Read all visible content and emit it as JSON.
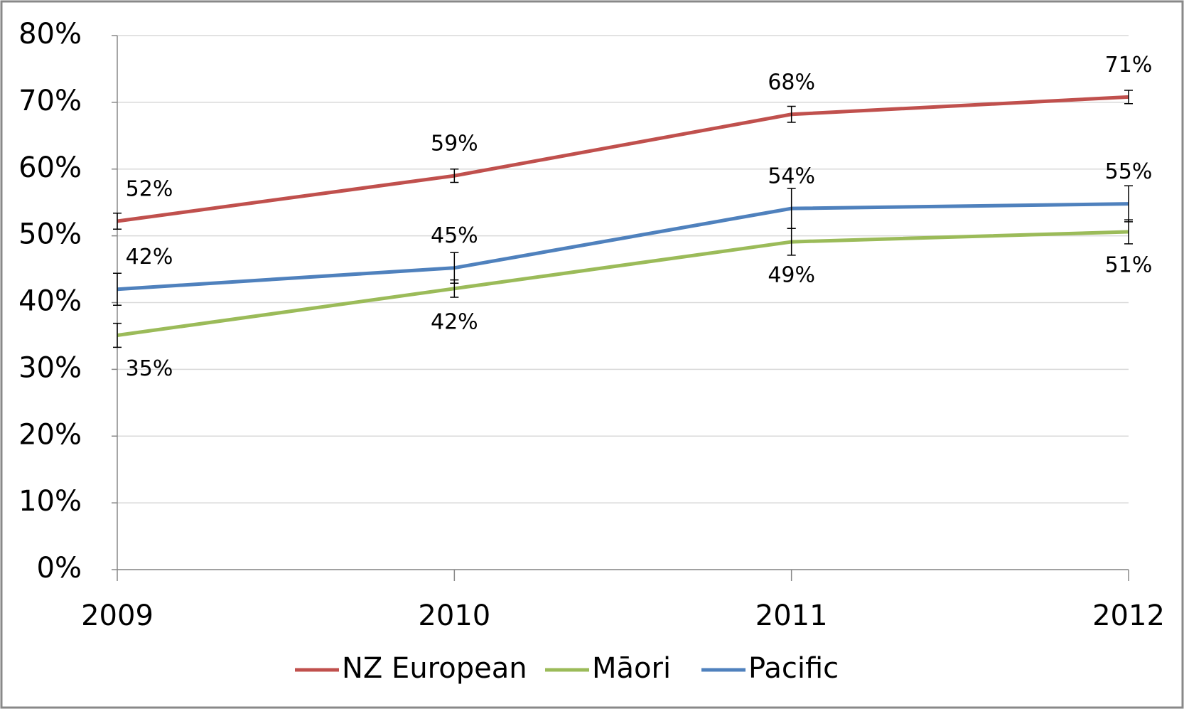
{
  "chart_data": {
    "type": "line",
    "categories": [
      "2009",
      "2010",
      "2011",
      "2012"
    ],
    "series": [
      {
        "name": "NZ European",
        "color": "#c0504d",
        "values": [
          52.2,
          59,
          68.2,
          70.8
        ],
        "errors": [
          1.2,
          1,
          1.2,
          1
        ],
        "value_labels": [
          "52%",
          "59%",
          "68%",
          "71%"
        ],
        "label_position": "above"
      },
      {
        "name": "Māori",
        "color": "#9bbb59",
        "values": [
          35.1,
          42.1,
          49.1,
          50.6
        ],
        "errors": [
          1.8,
          1.3,
          2,
          1.8
        ],
        "value_labels": [
          "35%",
          "42%",
          "49%",
          "51%"
        ],
        "label_position": "below"
      },
      {
        "name": "Pacific",
        "color": "#4f81bd",
        "values": [
          42,
          45.2,
          54.1,
          54.8
        ],
        "errors": [
          2.4,
          2.3,
          3,
          2.7
        ],
        "value_labels": [
          "42%",
          "45%",
          "54%",
          "55%"
        ],
        "label_position": "above"
      }
    ],
    "ylim": [
      0,
      80
    ],
    "yticks": [
      {
        "value": 0,
        "label": "0%"
      },
      {
        "value": 10,
        "label": "10%"
      },
      {
        "value": 20,
        "label": "20%"
      },
      {
        "value": 30,
        "label": "30%"
      },
      {
        "value": 40,
        "label": "40%"
      },
      {
        "value": 50,
        "label": "50%"
      },
      {
        "value": 60,
        "label": "60%"
      },
      {
        "value": 70,
        "label": "70%"
      },
      {
        "value": 80,
        "label": "80%"
      }
    ],
    "grid": true,
    "legend": "bottom"
  }
}
